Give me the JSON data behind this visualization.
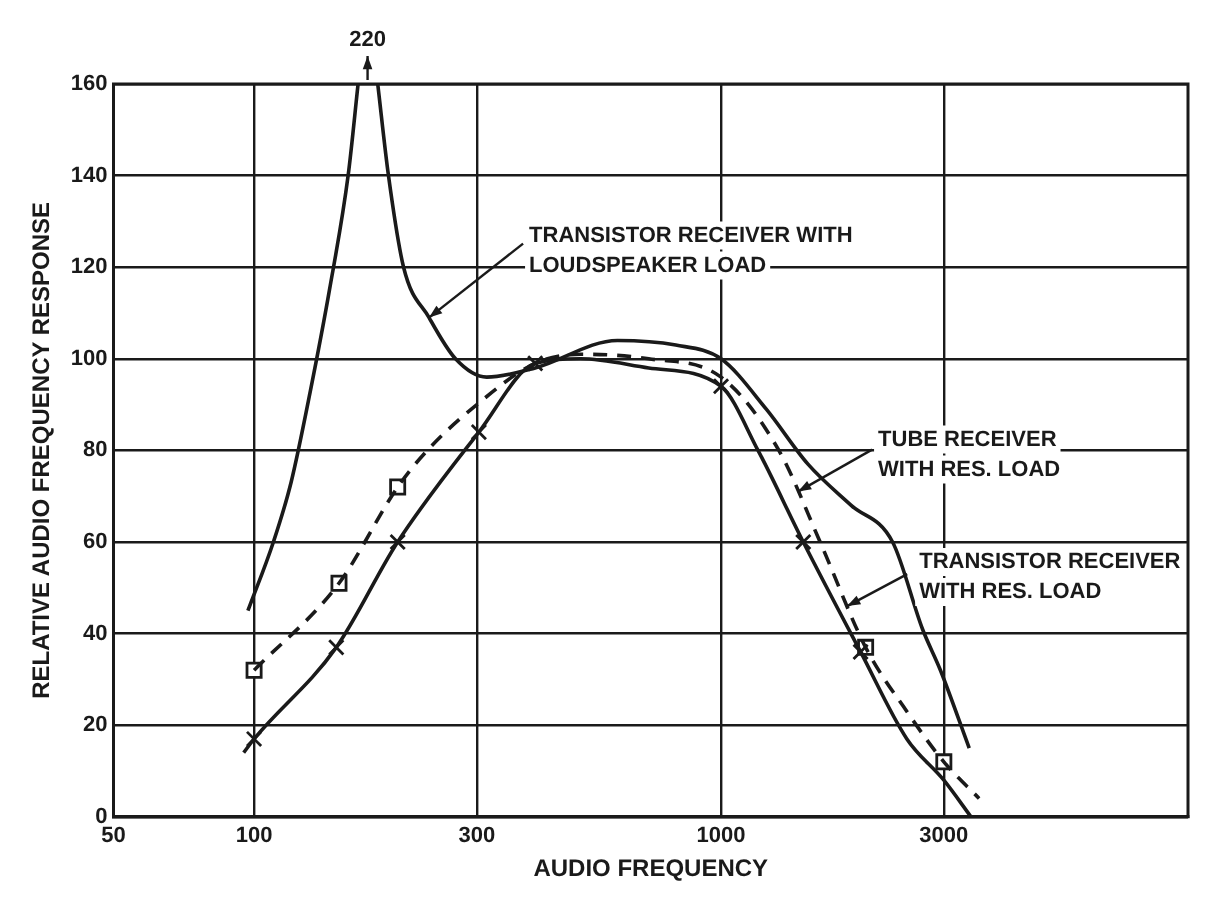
{
  "chart_data": {
    "type": "line",
    "xlabel": "AUDIO FREQUENCY",
    "ylabel": "RELATIVE AUDIO FREQUENCY RESPONSE",
    "log": "x",
    "xlim": [
      50,
      10000
    ],
    "xticks": [
      50,
      100,
      300,
      1000,
      3000
    ],
    "ylim": [
      0,
      160
    ],
    "yticks": [
      0,
      20,
      40,
      60,
      80,
      100,
      120,
      140,
      160
    ],
    "grid": true,
    "legend": false,
    "series": [
      {
        "type": "line",
        "color": "#1a1a1a",
        "marker": "none",
        "line_style": "solid",
        "x": [
          97,
          110,
          120,
          132,
          145,
          159,
          167,
          175,
          184,
          194,
          209,
          237,
          270,
          315,
          400,
          600,
          800,
          1000,
          1250,
          1535,
          1900,
          2330,
          2700,
          2950,
          3400
        ],
        "values": [
          45,
          60,
          73,
          93,
          115,
          140,
          160,
          null,
          160,
          140,
          120,
          109,
          100,
          96,
          98,
          104,
          103,
          100,
          89,
          77,
          68,
          60,
          41,
          32,
          15
        ]
      },
      {
        "type": "line",
        "color": "#1a1a1a",
        "marker": "none",
        "line_style": "solid",
        "x": [
          95,
          100,
          150,
          203,
          303,
          400,
          500,
          700,
          1000,
          1200,
          1500,
          1990,
          2500,
          3000,
          3430
        ],
        "values": [
          14,
          17,
          37,
          60,
          84,
          99,
          100,
          98,
          94,
          80,
          60,
          36,
          17,
          8,
          0
        ]
      },
      {
        "type": "line",
        "color": "#1a1a1a",
        "marker": "none",
        "line_style": "dashed",
        "x": [
          100,
          152,
          203,
          235,
          300,
          400,
          500,
          700,
          1000,
          1330,
          1630,
          2040,
          2500,
          3000,
          3570
        ],
        "values": [
          32,
          51,
          72,
          80,
          90,
          99,
          101,
          100,
          96,
          80,
          60,
          37,
          23,
          12,
          4
        ]
      },
      {
        "type": "scatter",
        "color": "#1a1a1a",
        "marker": "cross",
        "x": [
          100,
          150,
          203,
          303,
          400,
          1000,
          1500,
          1990
        ],
        "values": [
          17,
          37,
          60,
          84,
          99,
          94,
          60,
          36
        ]
      },
      {
        "type": "scatter",
        "color": "#1a1a1a",
        "marker": "square",
        "x": [
          100,
          152,
          203,
          2040,
          3000
        ],
        "values": [
          32,
          51,
          72,
          37,
          12
        ]
      }
    ],
    "annotations": [
      {
        "text": "220",
        "x": 175,
        "y": 160
      },
      {
        "text": "TRANSISTOR RECEIVER WITH\nLOUDSPEAKER LOAD",
        "x": 237,
        "y": 109
      },
      {
        "text": "TUBE RECEIVER\nWITH RES. LOAD",
        "x": 1462,
        "y": 71
      },
      {
        "text": "TRANSISTOR RECEIVER\nWITH RES. LOAD",
        "x": 1863,
        "y": 46
      }
    ]
  }
}
